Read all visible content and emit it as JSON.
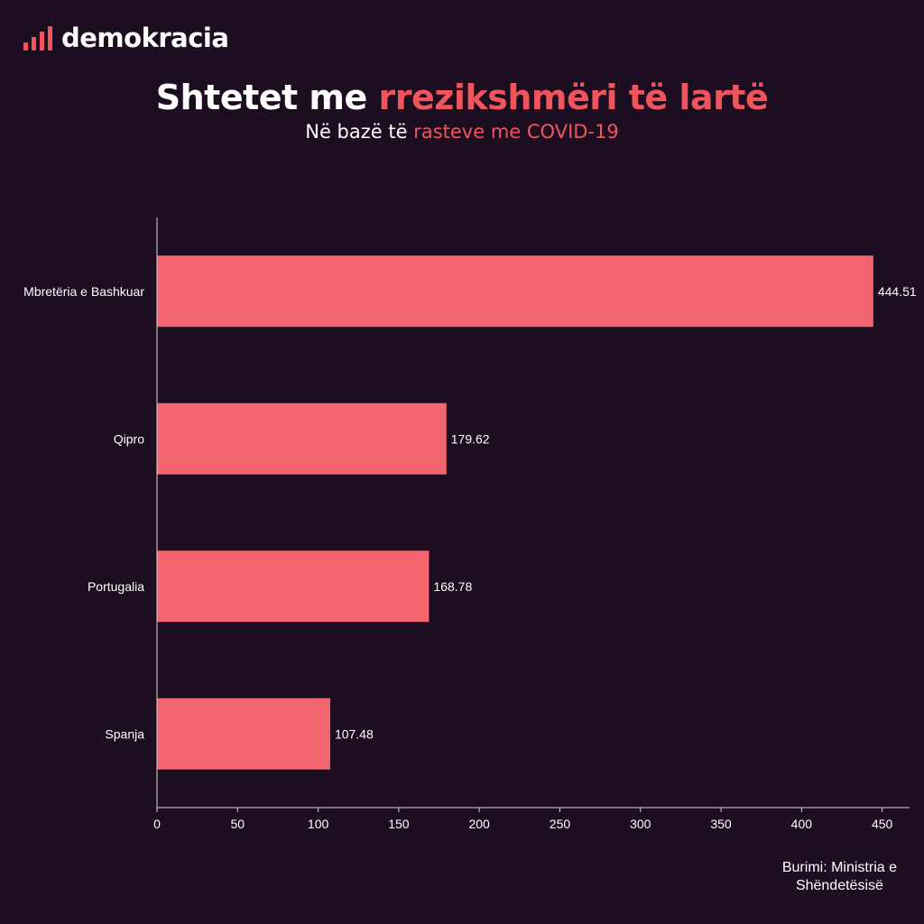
{
  "brand": {
    "name": "demokracia",
    "accent": "#f0555e"
  },
  "header": {
    "title_part1": "Shtetet me ",
    "title_part2": "rrezikshmëri të lartë",
    "subtitle_part1": "Në bazë të ",
    "subtitle_part2": "rasteve me COVID-19"
  },
  "source": {
    "line1": "Burimi: Ministria e",
    "line2": "Shëndetësisë"
  },
  "chart_data": {
    "type": "bar",
    "orientation": "horizontal",
    "categories": [
      "Mbretëria e Bashkuar",
      "Qipro",
      "Portugalia",
      "Spanja"
    ],
    "values": [
      444.51,
      179.62,
      168.78,
      107.48
    ],
    "value_labels": [
      "444.51",
      "179.62",
      "168.78",
      "107.48"
    ],
    "xticks": [
      0,
      50,
      100,
      150,
      200,
      250,
      300,
      350,
      400,
      450
    ],
    "xlim": [
      0,
      467
    ],
    "bar_color": "#f2646e",
    "grid": false
  }
}
